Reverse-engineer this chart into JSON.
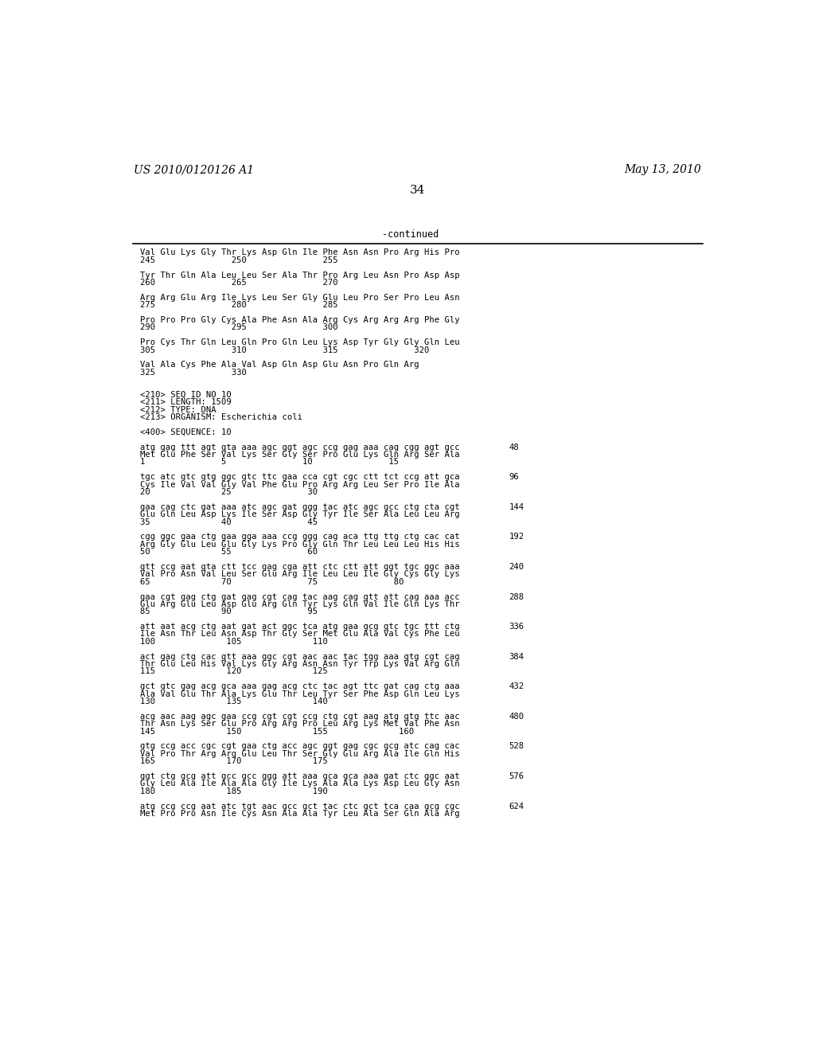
{
  "header_left": "US 2010/0120126 A1",
  "header_right": "May 13, 2010",
  "page_number": "34",
  "continued_label": "-continued",
  "background_color": "#ffffff",
  "text_color": "#000000",
  "lines": [
    [
      "Val Glu Lys Gly Thr Lys Asp Gln Ile Phe Asn Asn Pro Arg His Pro",
      null
    ],
    [
      "245               250               255",
      null
    ],
    [
      "",
      null
    ],
    [
      "Tyr Thr Gln Ala Leu Leu Ser Ala Thr Pro Arg Leu Asn Pro Asp Asp",
      null
    ],
    [
      "260               265               270",
      null
    ],
    [
      "",
      null
    ],
    [
      "Arg Arg Glu Arg Ile Lys Leu Ser Gly Glu Leu Pro Ser Pro Leu Asn",
      null
    ],
    [
      "275               280               285",
      null
    ],
    [
      "",
      null
    ],
    [
      "Pro Pro Pro Gly Cys Ala Phe Asn Ala Arg Cys Arg Arg Arg Phe Gly",
      null
    ],
    [
      "290               295               300",
      null
    ],
    [
      "",
      null
    ],
    [
      "Pro Cys Thr Gln Leu Gln Pro Gln Leu Lys Asp Tyr Gly Gly Gln Leu",
      null
    ],
    [
      "305               310               315               320",
      null
    ],
    [
      "",
      null
    ],
    [
      "Val Ala Cys Phe Ala Val Asp Gln Asp Glu Asn Pro Gln Arg",
      null
    ],
    [
      "325               330",
      null
    ],
    [
      "",
      null
    ],
    [
      "",
      null
    ],
    [
      "<210> SEQ ID NO 10",
      null
    ],
    [
      "<211> LENGTH: 1509",
      null
    ],
    [
      "<212> TYPE: DNA",
      null
    ],
    [
      "<213> ORGANISM: Escherichia coli",
      null
    ],
    [
      "",
      null
    ],
    [
      "<400> SEQUENCE: 10",
      null
    ],
    [
      "",
      null
    ],
    [
      "atg gag ttt agt gta aaa agc ggt agc ccg gag aaa cag cgg agt gcc",
      "48"
    ],
    [
      "Met Glu Phe Ser Val Lys Ser Gly Ser Pro Glu Lys Gln Arg Ser Ala",
      null
    ],
    [
      "1               5               10               15",
      null
    ],
    [
      "",
      null
    ],
    [
      "tgc atc gtc gtg ggc gtc ttc gaa cca cgt cgc ctt tct ccg att gca",
      "96"
    ],
    [
      "Cys Ile Val Val Gly Val Phe Glu Pro Arg Arg Leu Ser Pro Ile Ala",
      null
    ],
    [
      "20              25               30",
      null
    ],
    [
      "",
      null
    ],
    [
      "gaa cag ctc gat aaa atc agc gat ggg tac atc agc gcc ctg cta cgt",
      "144"
    ],
    [
      "Glu Gln Leu Asp Lys Ile Ser Asp Gly Tyr Ile Ser Ala Leu Leu Arg",
      null
    ],
    [
      "35              40               45",
      null
    ],
    [
      "",
      null
    ],
    [
      "cgg ggc gaa ctg gaa gga aaa ccg ggg cag aca ttg ttg ctg cac cat",
      "192"
    ],
    [
      "Arg Gly Glu Leu Glu Gly Lys Pro Gly Gln Thr Leu Leu Leu His His",
      null
    ],
    [
      "50              55               60",
      null
    ],
    [
      "",
      null
    ],
    [
      "gtt ccg aat gta ctt tcc gag cga att ctc ctt att ggt tgc ggc aaa",
      "240"
    ],
    [
      "Val Pro Asn Val Leu Ser Glu Arg Ile Leu Leu Ile Gly Cys Gly Lys",
      null
    ],
    [
      "65              70               75               80",
      null
    ],
    [
      "",
      null
    ],
    [
      "gaa cgt gag ctg gat gag cgt cag tac aag cag gtt att cag aaa acc",
      "288"
    ],
    [
      "Glu Arg Glu Leu Asp Glu Arg Gln Tyr Lys Gln Val Ile Gln Lys Thr",
      null
    ],
    [
      "85              90               95",
      null
    ],
    [
      "",
      null
    ],
    [
      "att aat acg ctg aat gat act ggc tca atg gaa gcg gtc tgc ttt ctg",
      "336"
    ],
    [
      "Ile Asn Thr Leu Asn Asp Thr Gly Ser Met Glu Ala Val Cys Phe Leu",
      null
    ],
    [
      "100              105              110",
      null
    ],
    [
      "",
      null
    ],
    [
      "act gag ctg cac gtt aaa ggc cgt aac aac tac tgg aaa gtg cgt cag",
      "384"
    ],
    [
      "Thr Glu Leu His Val Lys Gly Arg Asn Asn Tyr Trp Lys Val Arg Gln",
      null
    ],
    [
      "115              120              125",
      null
    ],
    [
      "",
      null
    ],
    [
      "gct gtc gag acg gca aaa gag acg ctc tac agt ttc gat cag ctg aaa",
      "432"
    ],
    [
      "Ala Val Glu Thr Ala Lys Glu Thr Leu Tyr Ser Phe Asp Gln Leu Lys",
      null
    ],
    [
      "130              135              140",
      null
    ],
    [
      "",
      null
    ],
    [
      "acg aac aag agc gaa ccg cgt cgt ccg ctg cgt aag atg gtg ttc aac",
      "480"
    ],
    [
      "Thr Asn Lys Ser Glu Pro Arg Arg Pro Leu Arg Lys Met Val Phe Asn",
      null
    ],
    [
      "145              150              155              160",
      null
    ],
    [
      "",
      null
    ],
    [
      "gtg ccg acc cgc cgt gaa ctg acc agc ggt gag cgc gcg atc cag cac",
      "528"
    ],
    [
      "Val Pro Thr Arg Arg Glu Leu Thr Ser Gly Glu Arg Ala Ile Gln His",
      null
    ],
    [
      "165              170              175",
      null
    ],
    [
      "",
      null
    ],
    [
      "ggt ctg gcg att gcc gcc ggg att aaa gca gca aaa gat ctc ggc aat",
      "576"
    ],
    [
      "Gly Leu Ala Ile Ala Ala Gly Ile Lys Ala Ala Lys Asp Leu Gly Asn",
      null
    ],
    [
      "180              185              190",
      null
    ],
    [
      "",
      null
    ],
    [
      "atg ccg ccg aat atc tgt aac gcc gct tac ctc gct tca caa gcg cgc",
      "624"
    ],
    [
      "Met Pro Pro Asn Ile Cys Asn Ala Ala Tyr Leu Ala Ser Gln Ala Arg",
      null
    ]
  ]
}
